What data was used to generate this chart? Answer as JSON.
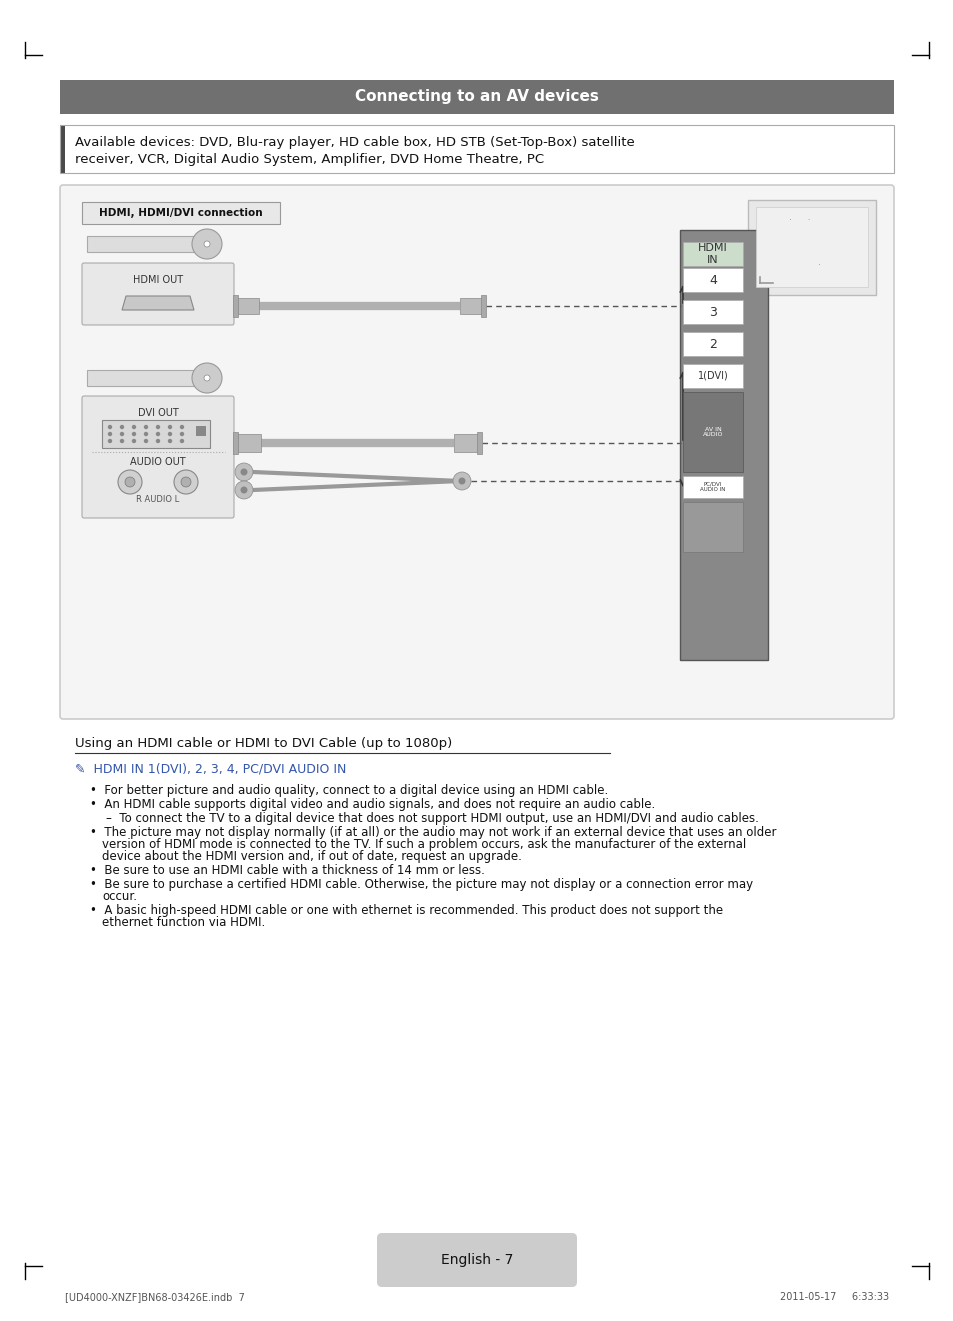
{
  "page_bg": "#ffffff",
  "title_bar_color": "#707070",
  "title_text": "Connecting to an AV devices",
  "title_text_color": "#ffffff",
  "sidebar_color": "#4a4a4a",
  "available_devices_line1": "Available devices: DVD, Blu-ray player, HD cable box, HD STB (Set-Top-Box) satellite",
  "available_devices_line2": "receiver, VCR, Digital Audio System, Amplifier, DVD Home Theatre, PC",
  "diagram_box_color": "#f5f5f5",
  "diagram_box_border": "#cccccc",
  "hdmi_label_box_bg": "#e8e8e8",
  "hdmi_label_box_border": "#999999",
  "hdmi_label_text": "HDMI, HDMI/DVI connection",
  "footer_box_bg": "#cccccc",
  "footer_text": "English - 7",
  "footer_left_text": "[UD4000-XNZF]BN68-03426E.indb  7",
  "footer_right_text": "2011-05-17     6:33:33",
  "using_hdmi_text": "Using an HDMI cable or HDMI to DVI Cable (up to 1080p)",
  "note_line": "HDMI IN 1(DVI), 2, 3, 4, PC/DVI AUDIO IN",
  "bullet1": "For better picture and audio quality, connect to a digital device using an HDMI cable.",
  "bullet2": "An HDMI cable supports digital video and audio signals, and does not require an audio cable.",
  "bullet2sub": "To connect the TV to a digital device that does not support HDMI output, use an HDMI/DVI and audio cables.",
  "bullet3a": "The picture may not display normally (if at all) or the audio may not work if an external device that uses an older",
  "bullet3b": "version of HDMI mode is connected to the TV. If such a problem occurs, ask the manufacturer of the external",
  "bullet3c": "device about the HDMI version and, if out of date, request an upgrade.",
  "bullet4": "Be sure to use an HDMI cable with a thickness of 14 mm or less.",
  "bullet5a": "Be sure to purchase a certified HDMI cable. Otherwise, the picture may not display or a connection error may",
  "bullet5b": "occur.",
  "bullet6a": "A basic high-speed HDMI cable or one with ethernet is recommended. This product does not support the",
  "bullet6b": "ethernet function via HDMI."
}
